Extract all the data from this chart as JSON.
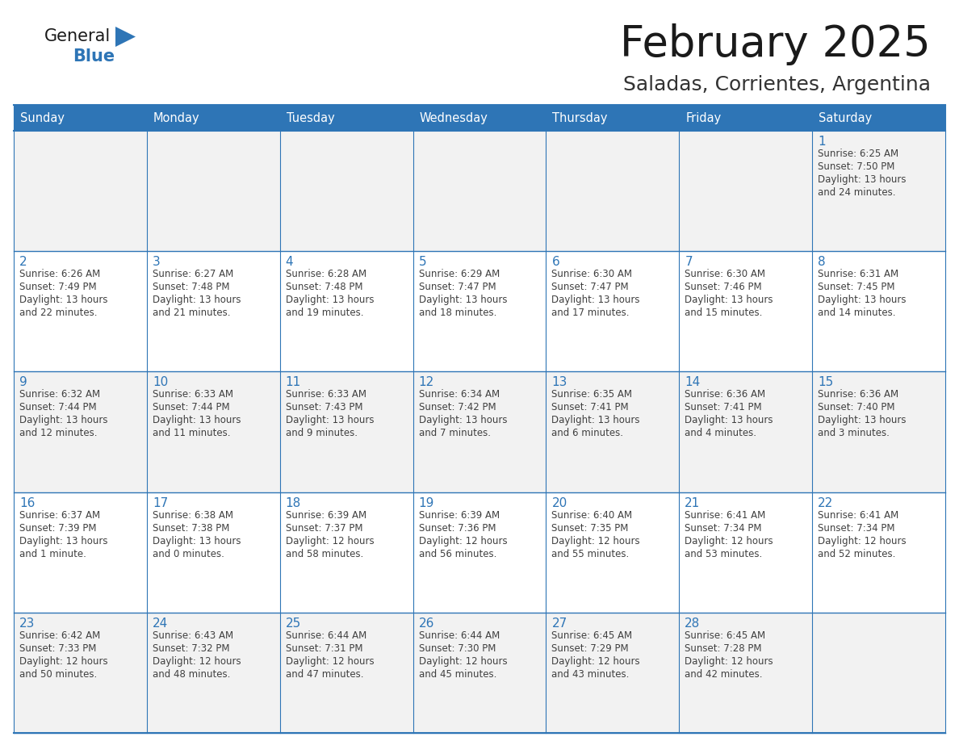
{
  "title": "February 2025",
  "subtitle": "Saladas, Corrientes, Argentina",
  "days_of_week": [
    "Sunday",
    "Monday",
    "Tuesday",
    "Wednesday",
    "Thursday",
    "Friday",
    "Saturday"
  ],
  "header_bg": "#2E75B6",
  "header_text": "#FFFFFF",
  "cell_bg_odd": "#F2F2F2",
  "cell_bg_even": "#FFFFFF",
  "border_color": "#2E75B6",
  "day_num_color": "#2E75B6",
  "cell_text_color": "#404040",
  "title_color": "#1A1A1A",
  "subtitle_color": "#333333",
  "logo_general_color": "#1A1A1A",
  "logo_blue_color": "#2E75B6",
  "calendar_data": [
    [
      null,
      null,
      null,
      null,
      null,
      null,
      {
        "day": 1,
        "sunrise": "6:25 AM",
        "sunset": "7:50 PM",
        "daylight_line1": "Daylight: 13 hours",
        "daylight_line2": "and 24 minutes."
      }
    ],
    [
      {
        "day": 2,
        "sunrise": "6:26 AM",
        "sunset": "7:49 PM",
        "daylight_line1": "Daylight: 13 hours",
        "daylight_line2": "and 22 minutes."
      },
      {
        "day": 3,
        "sunrise": "6:27 AM",
        "sunset": "7:48 PM",
        "daylight_line1": "Daylight: 13 hours",
        "daylight_line2": "and 21 minutes."
      },
      {
        "day": 4,
        "sunrise": "6:28 AM",
        "sunset": "7:48 PM",
        "daylight_line1": "Daylight: 13 hours",
        "daylight_line2": "and 19 minutes."
      },
      {
        "day": 5,
        "sunrise": "6:29 AM",
        "sunset": "7:47 PM",
        "daylight_line1": "Daylight: 13 hours",
        "daylight_line2": "and 18 minutes."
      },
      {
        "day": 6,
        "sunrise": "6:30 AM",
        "sunset": "7:47 PM",
        "daylight_line1": "Daylight: 13 hours",
        "daylight_line2": "and 17 minutes."
      },
      {
        "day": 7,
        "sunrise": "6:30 AM",
        "sunset": "7:46 PM",
        "daylight_line1": "Daylight: 13 hours",
        "daylight_line2": "and 15 minutes."
      },
      {
        "day": 8,
        "sunrise": "6:31 AM",
        "sunset": "7:45 PM",
        "daylight_line1": "Daylight: 13 hours",
        "daylight_line2": "and 14 minutes."
      }
    ],
    [
      {
        "day": 9,
        "sunrise": "6:32 AM",
        "sunset": "7:44 PM",
        "daylight_line1": "Daylight: 13 hours",
        "daylight_line2": "and 12 minutes."
      },
      {
        "day": 10,
        "sunrise": "6:33 AM",
        "sunset": "7:44 PM",
        "daylight_line1": "Daylight: 13 hours",
        "daylight_line2": "and 11 minutes."
      },
      {
        "day": 11,
        "sunrise": "6:33 AM",
        "sunset": "7:43 PM",
        "daylight_line1": "Daylight: 13 hours",
        "daylight_line2": "and 9 minutes."
      },
      {
        "day": 12,
        "sunrise": "6:34 AM",
        "sunset": "7:42 PM",
        "daylight_line1": "Daylight: 13 hours",
        "daylight_line2": "and 7 minutes."
      },
      {
        "day": 13,
        "sunrise": "6:35 AM",
        "sunset": "7:41 PM",
        "daylight_line1": "Daylight: 13 hours",
        "daylight_line2": "and 6 minutes."
      },
      {
        "day": 14,
        "sunrise": "6:36 AM",
        "sunset": "7:41 PM",
        "daylight_line1": "Daylight: 13 hours",
        "daylight_line2": "and 4 minutes."
      },
      {
        "day": 15,
        "sunrise": "6:36 AM",
        "sunset": "7:40 PM",
        "daylight_line1": "Daylight: 13 hours",
        "daylight_line2": "and 3 minutes."
      }
    ],
    [
      {
        "day": 16,
        "sunrise": "6:37 AM",
        "sunset": "7:39 PM",
        "daylight_line1": "Daylight: 13 hours",
        "daylight_line2": "and 1 minute."
      },
      {
        "day": 17,
        "sunrise": "6:38 AM",
        "sunset": "7:38 PM",
        "daylight_line1": "Daylight: 13 hours",
        "daylight_line2": "and 0 minutes."
      },
      {
        "day": 18,
        "sunrise": "6:39 AM",
        "sunset": "7:37 PM",
        "daylight_line1": "Daylight: 12 hours",
        "daylight_line2": "and 58 minutes."
      },
      {
        "day": 19,
        "sunrise": "6:39 AM",
        "sunset": "7:36 PM",
        "daylight_line1": "Daylight: 12 hours",
        "daylight_line2": "and 56 minutes."
      },
      {
        "day": 20,
        "sunrise": "6:40 AM",
        "sunset": "7:35 PM",
        "daylight_line1": "Daylight: 12 hours",
        "daylight_line2": "and 55 minutes."
      },
      {
        "day": 21,
        "sunrise": "6:41 AM",
        "sunset": "7:34 PM",
        "daylight_line1": "Daylight: 12 hours",
        "daylight_line2": "and 53 minutes."
      },
      {
        "day": 22,
        "sunrise": "6:41 AM",
        "sunset": "7:34 PM",
        "daylight_line1": "Daylight: 12 hours",
        "daylight_line2": "and 52 minutes."
      }
    ],
    [
      {
        "day": 23,
        "sunrise": "6:42 AM",
        "sunset": "7:33 PM",
        "daylight_line1": "Daylight: 12 hours",
        "daylight_line2": "and 50 minutes."
      },
      {
        "day": 24,
        "sunrise": "6:43 AM",
        "sunset": "7:32 PM",
        "daylight_line1": "Daylight: 12 hours",
        "daylight_line2": "and 48 minutes."
      },
      {
        "day": 25,
        "sunrise": "6:44 AM",
        "sunset": "7:31 PM",
        "daylight_line1": "Daylight: 12 hours",
        "daylight_line2": "and 47 minutes."
      },
      {
        "day": 26,
        "sunrise": "6:44 AM",
        "sunset": "7:30 PM",
        "daylight_line1": "Daylight: 12 hours",
        "daylight_line2": "and 45 minutes."
      },
      {
        "day": 27,
        "sunrise": "6:45 AM",
        "sunset": "7:29 PM",
        "daylight_line1": "Daylight: 12 hours",
        "daylight_line2": "and 43 minutes."
      },
      {
        "day": 28,
        "sunrise": "6:45 AM",
        "sunset": "7:28 PM",
        "daylight_line1": "Daylight: 12 hours",
        "daylight_line2": "and 42 minutes."
      },
      null
    ]
  ],
  "fig_width": 11.88,
  "fig_height": 9.18,
  "dpi": 100
}
